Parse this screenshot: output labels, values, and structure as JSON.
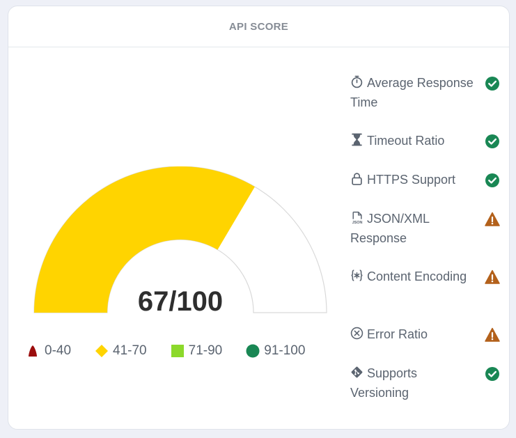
{
  "card": {
    "title": "API SCORE"
  },
  "gauge": {
    "score": 67,
    "max": 100,
    "score_text": "67/100",
    "fill_color": "#ffd400",
    "track_color": "#ffffff",
    "border_color": "#d9d9d9"
  },
  "legend": [
    {
      "label": "0-40",
      "shape": "triangle",
      "color": "#9b0d0d"
    },
    {
      "label": "41-70",
      "shape": "diamond",
      "color": "#ffd400"
    },
    {
      "label": "71-90",
      "shape": "square",
      "color": "#8cd92b"
    },
    {
      "label": "91-100",
      "shape": "circle",
      "color": "#198754"
    }
  ],
  "metrics": [
    {
      "label": "Average Response Time",
      "icon": "stopwatch-icon",
      "status": "pass"
    },
    {
      "label": "Timeout Ratio",
      "icon": "hourglass-icon",
      "status": "pass"
    },
    {
      "label": "HTTPS Support",
      "icon": "lock-icon",
      "status": "pass"
    },
    {
      "label": "JSON/XML Response",
      "icon": "json-file-icon",
      "status": "warning"
    },
    {
      "label": "Content Encoding",
      "icon": "braces-asterisk-icon",
      "status": "warning"
    },
    {
      "label": "Error Ratio",
      "icon": "x-circle-icon",
      "status": "warning"
    },
    {
      "label": "Supports Versioning",
      "icon": "git-icon",
      "status": "pass"
    }
  ],
  "status_colors": {
    "pass": "#198754",
    "warning": "#b3611b"
  }
}
